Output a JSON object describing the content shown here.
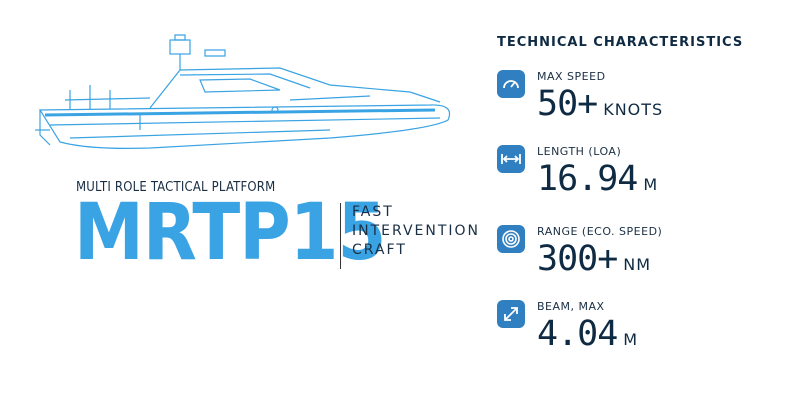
{
  "subtitle": "MULTI ROLE TACTICAL PLATFORM",
  "model": "MRTP15",
  "description": [
    "FAST",
    "INTERVENTION",
    "CRAFT"
  ],
  "tech_title": "TECHNICAL CHARACTERISTICS",
  "specs": [
    {
      "label": "MAX SPEED",
      "value": "50+",
      "unit": "KNOTS",
      "icon": "speedometer-icon"
    },
    {
      "label": "LENGTH (LOA)",
      "value": "16.94",
      "unit": "M",
      "icon": "arrows-horizontal-icon"
    },
    {
      "label": "RANGE (ECO. SPEED)",
      "value": "300+",
      "unit": "NM",
      "icon": "target-icon"
    },
    {
      "label": "BEAM, MAX",
      "value": "4.04",
      "unit": "M",
      "icon": "arrows-diagonal-icon"
    }
  ],
  "colors": {
    "accent": "#3aa3e3",
    "icon_bg": "#2f7fc1",
    "text": "#0f2a43"
  }
}
